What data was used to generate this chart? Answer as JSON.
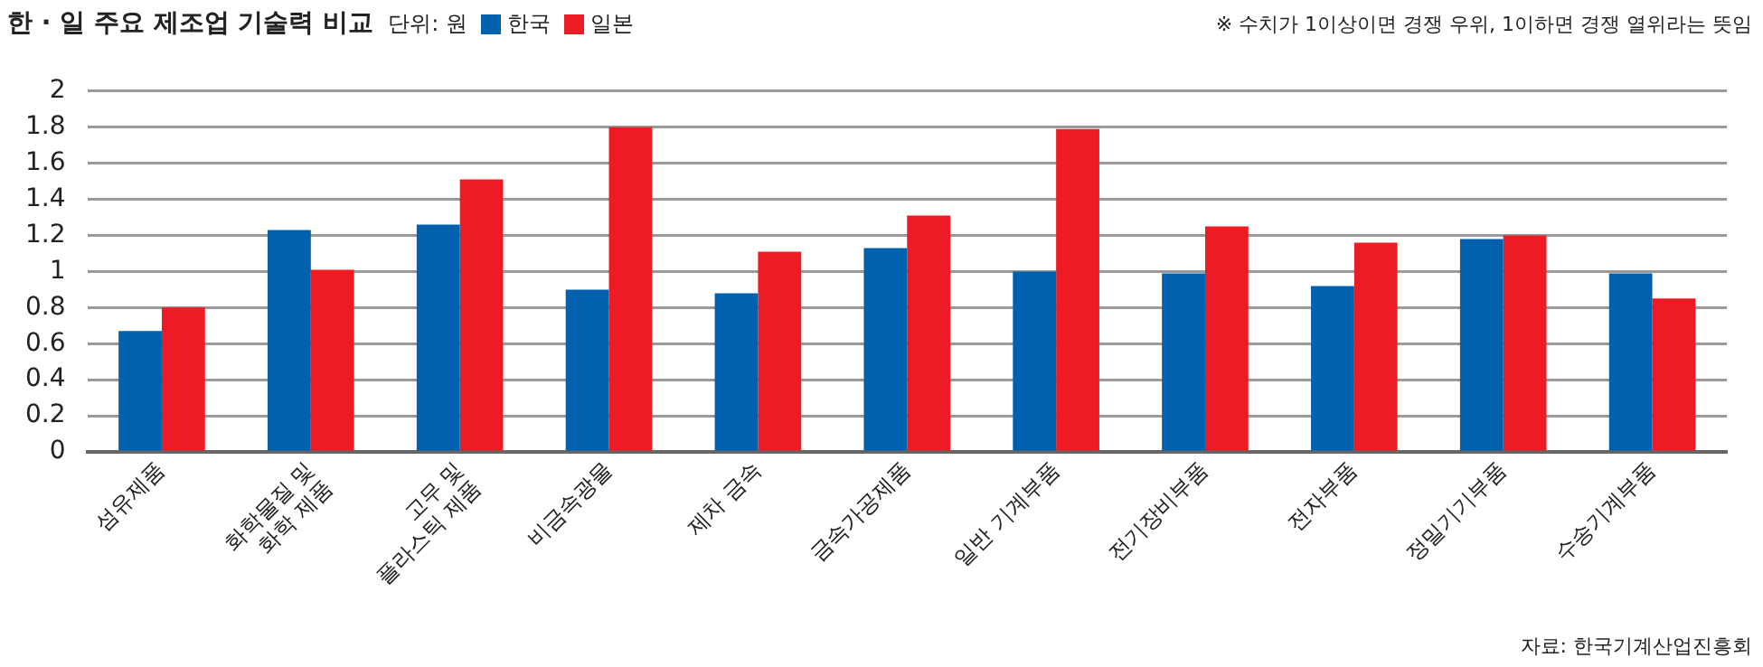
{
  "chart_data": {
    "type": "bar",
    "title": "한 · 일 주요 제조업 기술력 비교",
    "subtitle": "단위: 원",
    "categories": [
      "섬유제품",
      "화학물질 및\n화학 제품",
      "고무 및\n플라스틱 제품",
      "비금속광물",
      "제차 금속",
      "금속가공제품",
      "일반 기계부품",
      "전기장비부품",
      "전자부품",
      "정밀기기부품",
      "수송기계부품"
    ],
    "series": [
      {
        "name": "한국",
        "color": "#0061ae",
        "values": [
          0.67,
          1.23,
          1.26,
          0.9,
          0.88,
          1.13,
          1.0,
          0.99,
          0.92,
          1.18,
          0.99
        ]
      },
      {
        "name": "일본",
        "color": "#ed1c24",
        "values": [
          0.8,
          1.01,
          1.51,
          1.8,
          1.11,
          1.31,
          1.79,
          1.25,
          1.16,
          1.2,
          0.85
        ]
      }
    ],
    "ylim": [
      0,
      2
    ],
    "yticks": [
      0,
      0.2,
      0.4,
      0.6,
      0.8,
      1,
      1.2,
      1.4,
      1.6,
      1.8,
      2
    ],
    "grid": "y",
    "legend": "top",
    "annotations": [
      "※ 수치가 1이상이면 경쟁 우위, 1이하면 경쟁 열위라는 뜻임",
      "자료: 한국기계산업진흥회"
    ]
  }
}
